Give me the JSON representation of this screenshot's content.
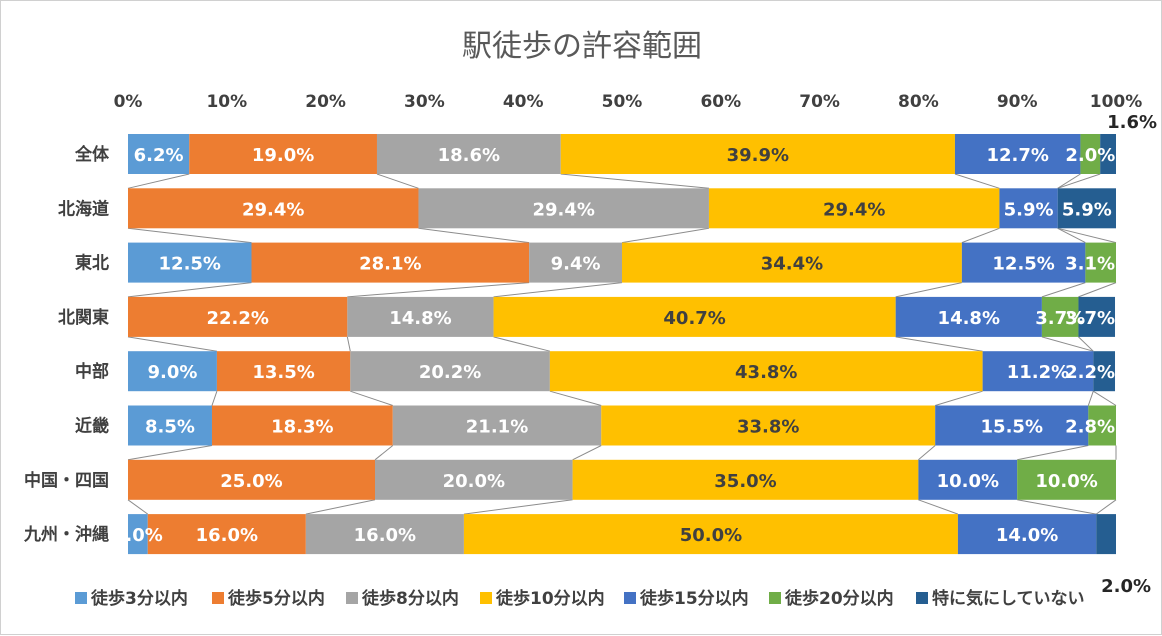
{
  "chart_data": {
    "type": "bar",
    "orientation": "horizontal",
    "stacked": "percent",
    "title": "駅徒歩の許容範囲",
    "xlabel": "",
    "ylabel": "",
    "xlim": [
      0,
      100
    ],
    "x_ticks": [
      "0%",
      "10%",
      "20%",
      "30%",
      "40%",
      "50%",
      "60%",
      "70%",
      "80%",
      "90%",
      "100%"
    ],
    "legend_position": "bottom",
    "series_lines": true,
    "categories": [
      "全体",
      "北海道",
      "東北",
      "北関東",
      "中部",
      "近畿",
      "中国・四国",
      "九州・沖縄"
    ],
    "series": [
      {
        "name": "徒歩3分以内",
        "color": "#5B9BD5",
        "values": [
          6.2,
          0,
          12.5,
          0,
          9.0,
          8.5,
          0,
          2.0
        ],
        "labels": [
          "6.2%",
          "",
          "12.5%",
          "",
          "9.0%",
          "8.5%",
          "",
          "2.0%"
        ]
      },
      {
        "name": "徒歩5分以内",
        "color": "#ED7D31",
        "values": [
          19.0,
          29.4,
          28.1,
          22.2,
          13.5,
          18.3,
          25.0,
          16.0
        ],
        "labels": [
          "19.0%",
          "29.4%",
          "28.1%",
          "22.2%",
          "13.5%",
          "18.3%",
          "25.0%",
          "16.0%"
        ]
      },
      {
        "name": "徒歩8分以内",
        "color": "#A5A5A5",
        "values": [
          18.6,
          29.4,
          9.4,
          14.8,
          20.2,
          21.1,
          20.0,
          16.0
        ],
        "labels": [
          "18.6%",
          "29.4%",
          "9.4%",
          "14.8%",
          "20.2%",
          "21.1%",
          "20.0%",
          "16.0%"
        ]
      },
      {
        "name": "徒歩10分以内",
        "color": "#FFC000",
        "values": [
          39.9,
          29.4,
          34.4,
          40.7,
          43.8,
          33.8,
          35.0,
          50.0
        ],
        "labels": [
          "39.9%",
          "29.4%",
          "34.4%",
          "40.7%",
          "43.8%",
          "33.8%",
          "35.0%",
          "50.0%"
        ]
      },
      {
        "name": "徒歩15分以内",
        "color": "#4472C4",
        "values": [
          12.7,
          5.9,
          12.5,
          14.8,
          11.2,
          15.5,
          10.0,
          14.0
        ],
        "labels": [
          "12.7%",
          "5.9%",
          "12.5%",
          "14.8%",
          "11.2%",
          "15.5%",
          "10.0%",
          "14.0%"
        ]
      },
      {
        "name": "徒歩20分以内",
        "color": "#70AD47",
        "values": [
          2.0,
          0,
          3.1,
          3.7,
          0,
          2.8,
          10.0,
          0
        ],
        "labels": [
          "2.0%",
          "",
          "3.1%",
          "3.7%",
          "",
          "2.8%",
          "10.0%",
          ""
        ]
      },
      {
        "name": "特に気にしていない",
        "color": "#255E91",
        "values": [
          1.6,
          5.9,
          0,
          3.7,
          2.2,
          0,
          0,
          2.0
        ],
        "labels": [
          "1.6%",
          "5.9%",
          "",
          "3.7%",
          "2.2%",
          "",
          "",
          "2.0%"
        ]
      }
    ]
  }
}
